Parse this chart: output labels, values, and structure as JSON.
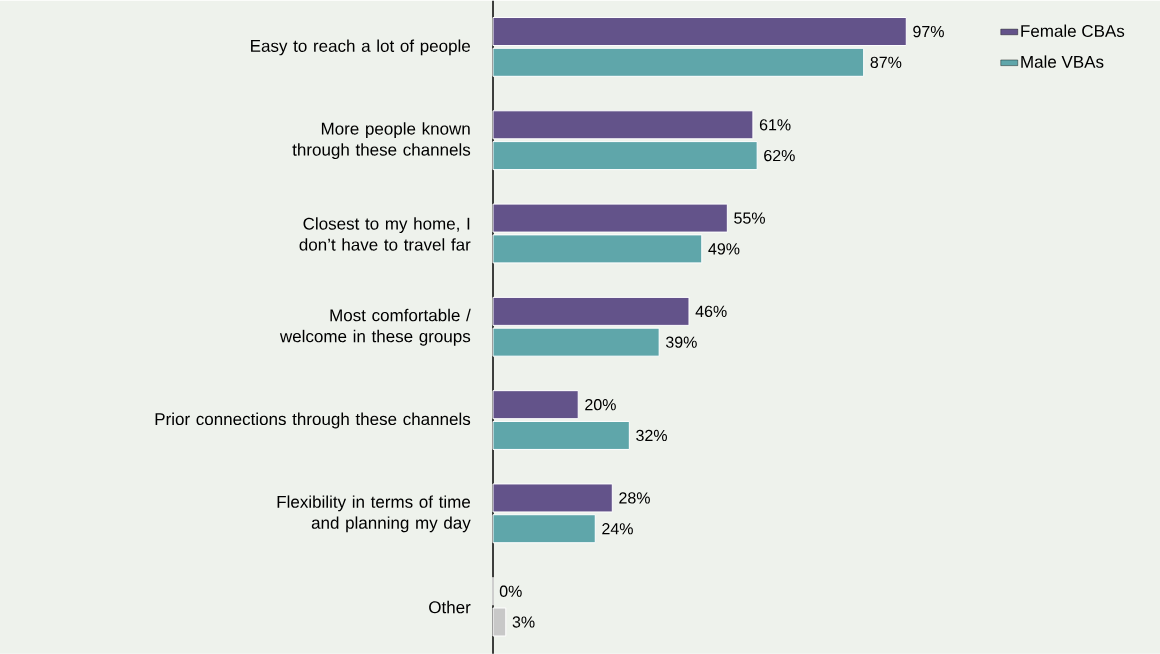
{
  "chart_data": {
    "type": "bar",
    "orientation": "horizontal",
    "legend": "top right",
    "categories": [
      "Easy to reach a lot of people",
      "More people known through these channels",
      "Closest to my home, I don’t have to travel far",
      "Most comfortable / welcome in these groups",
      "Prior connections through these channels",
      "Flexibility in terms of time and planning my day",
      "Other"
    ],
    "series": [
      {
        "name": "Female CBAs",
        "color": "#63538a",
        "values": [
          97,
          61,
          55,
          46,
          20,
          28,
          0
        ],
        "value_labels": [
          "97%",
          "61%",
          "55%",
          "46%",
          "20%",
          "28%",
          "0%"
        ]
      },
      {
        "name": "Male VBAs",
        "color": "#5fa6aa",
        "colors": [
          "#5fa6aa",
          "#5fa6aa",
          "#5fa6aa",
          "#5fa6aa",
          "#5fa6aa",
          "#5fa6aa",
          "#c8c8c8"
        ],
        "values": [
          87,
          62,
          49,
          39,
          32,
          24,
          3
        ],
        "value_labels": [
          "87%",
          "62%",
          "49%",
          "39%",
          "32%",
          "24%",
          "3%"
        ]
      }
    ]
  }
}
